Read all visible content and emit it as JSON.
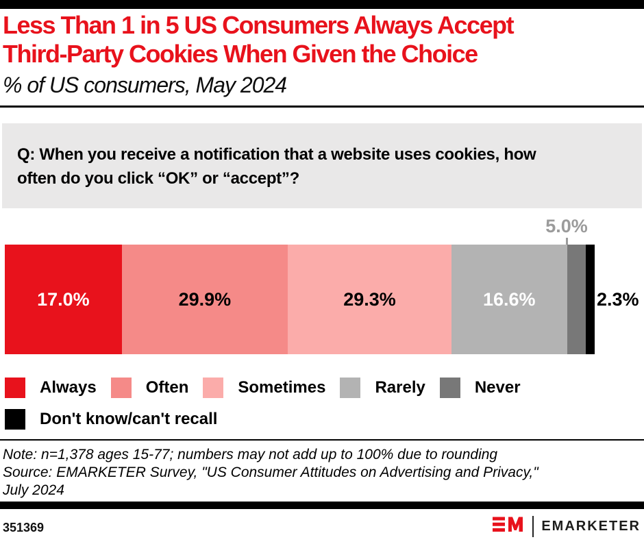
{
  "header": {
    "title_lines": [
      "Less Than 1 in 5 US Consumers Always Accept",
      "Third-Party Cookies When Given the Choice"
    ],
    "subtitle": "% of US consumers, May 2024",
    "title_color": "#e8121c"
  },
  "question": {
    "lines": [
      "Q: When you receive a notification that a website uses cookies, how",
      "often do you click “OK” or “accept”?"
    ]
  },
  "chart_data": {
    "type": "bar",
    "variant": "horizontal-stacked",
    "unit": "%",
    "title": "Less Than 1 in 5 US Consumers Always Accept Third-Party Cookies When Given the Choice",
    "subtitle": "% of US consumers, May 2024",
    "xlim": [
      0,
      100
    ],
    "categories": [
      "Always",
      "Often",
      "Sometimes",
      "Rarely",
      "Never",
      "Don't know/can't recall"
    ],
    "values": [
      17.0,
      29.9,
      29.3,
      16.6,
      5.0,
      2.3
    ],
    "segments": [
      {
        "label": "Always",
        "value": 17.0,
        "display": "17.0%",
        "color": "#e8121c",
        "label_color": "#ffffff",
        "label_position": "inside"
      },
      {
        "label": "Often",
        "value": 29.9,
        "display": "29.9%",
        "color": "#f58a88",
        "label_color": "#000000",
        "label_position": "inside"
      },
      {
        "label": "Sometimes",
        "value": 29.3,
        "display": "29.3%",
        "color": "#fbacaa",
        "label_color": "#000000",
        "label_position": "inside"
      },
      {
        "label": "Rarely",
        "value": 16.6,
        "display": "16.6%",
        "color": "#b3b3b3",
        "label_color": "#ffffff",
        "label_position": "inside"
      },
      {
        "label": "Never",
        "value": 5.0,
        "display": "5.0%",
        "color": "#787878",
        "label_color": "#9b9b9b",
        "label_position": "above"
      },
      {
        "label": "Don't know/can't recall",
        "value": 2.3,
        "display": "2.3%",
        "color": "#000000",
        "label_color": "#000000",
        "label_position": "right"
      }
    ]
  },
  "legend": {
    "rows": [
      [
        {
          "label": "Always",
          "color": "#e8121c"
        },
        {
          "label": "Often",
          "color": "#f58a88"
        },
        {
          "label": "Sometimes",
          "color": "#fbacaa"
        },
        {
          "label": "Rarely",
          "color": "#b3b3b3"
        },
        {
          "label": "Never",
          "color": "#787878"
        }
      ],
      [
        {
          "label": "Don't know/can't recall",
          "color": "#000000"
        }
      ]
    ]
  },
  "notes": {
    "lines": [
      "Note: n=1,378 ages 15-77; numbers may not add up to 100% due to rounding",
      "Source: EMARKETER Survey, \"US Consumer Attitudes on Advertising and Privacy,\"",
      "July 2024"
    ]
  },
  "footer": {
    "chart_id": "351369",
    "logo_text": "EMARKETER"
  }
}
